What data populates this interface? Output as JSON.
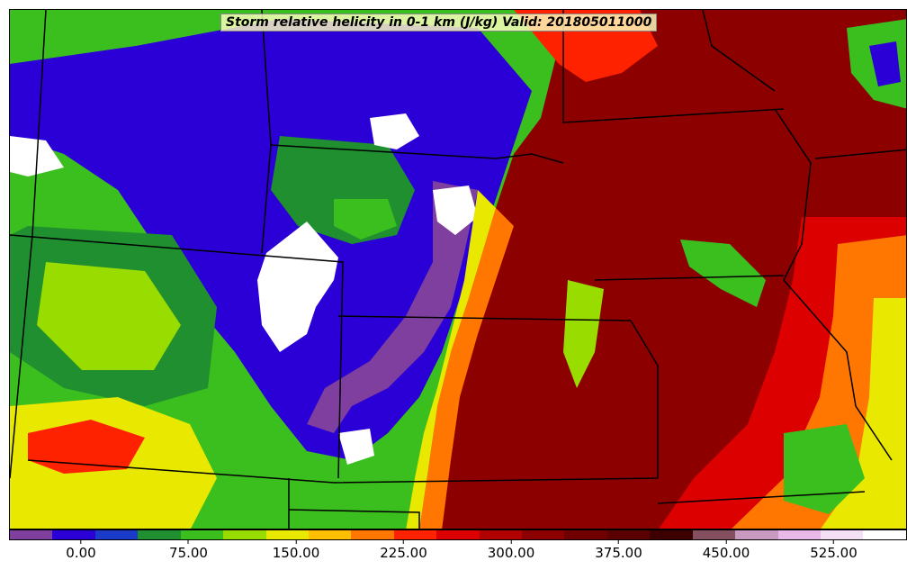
{
  "title": "Storm relative helicity in 0-1 km (J/kg) Valid: 201805011000",
  "colorbar": {
    "colors": [
      "#7f3f9f",
      "#2b00d6",
      "#1a3bc8",
      "#1f8f2f",
      "#3bbf1f",
      "#99dd00",
      "#e8e800",
      "#ffbf00",
      "#ff7700",
      "#ff2200",
      "#dd0000",
      "#b00000",
      "#8c0000",
      "#700000",
      "#5a0000",
      "#3d0000",
      "#845060",
      "#c99ac0",
      "#eab8e8",
      "#f5dff5",
      "#ffffff"
    ],
    "tick_labels": [
      "0.00",
      "75.00",
      "150.00",
      "225.00",
      "300.00",
      "375.00",
      "450.00",
      "525.00"
    ]
  },
  "map": {
    "background": "#8c0000",
    "legend_levels": [
      "purple",
      "blue",
      "green",
      "yellow",
      "orange",
      "red",
      "dark-red",
      "white"
    ]
  }
}
